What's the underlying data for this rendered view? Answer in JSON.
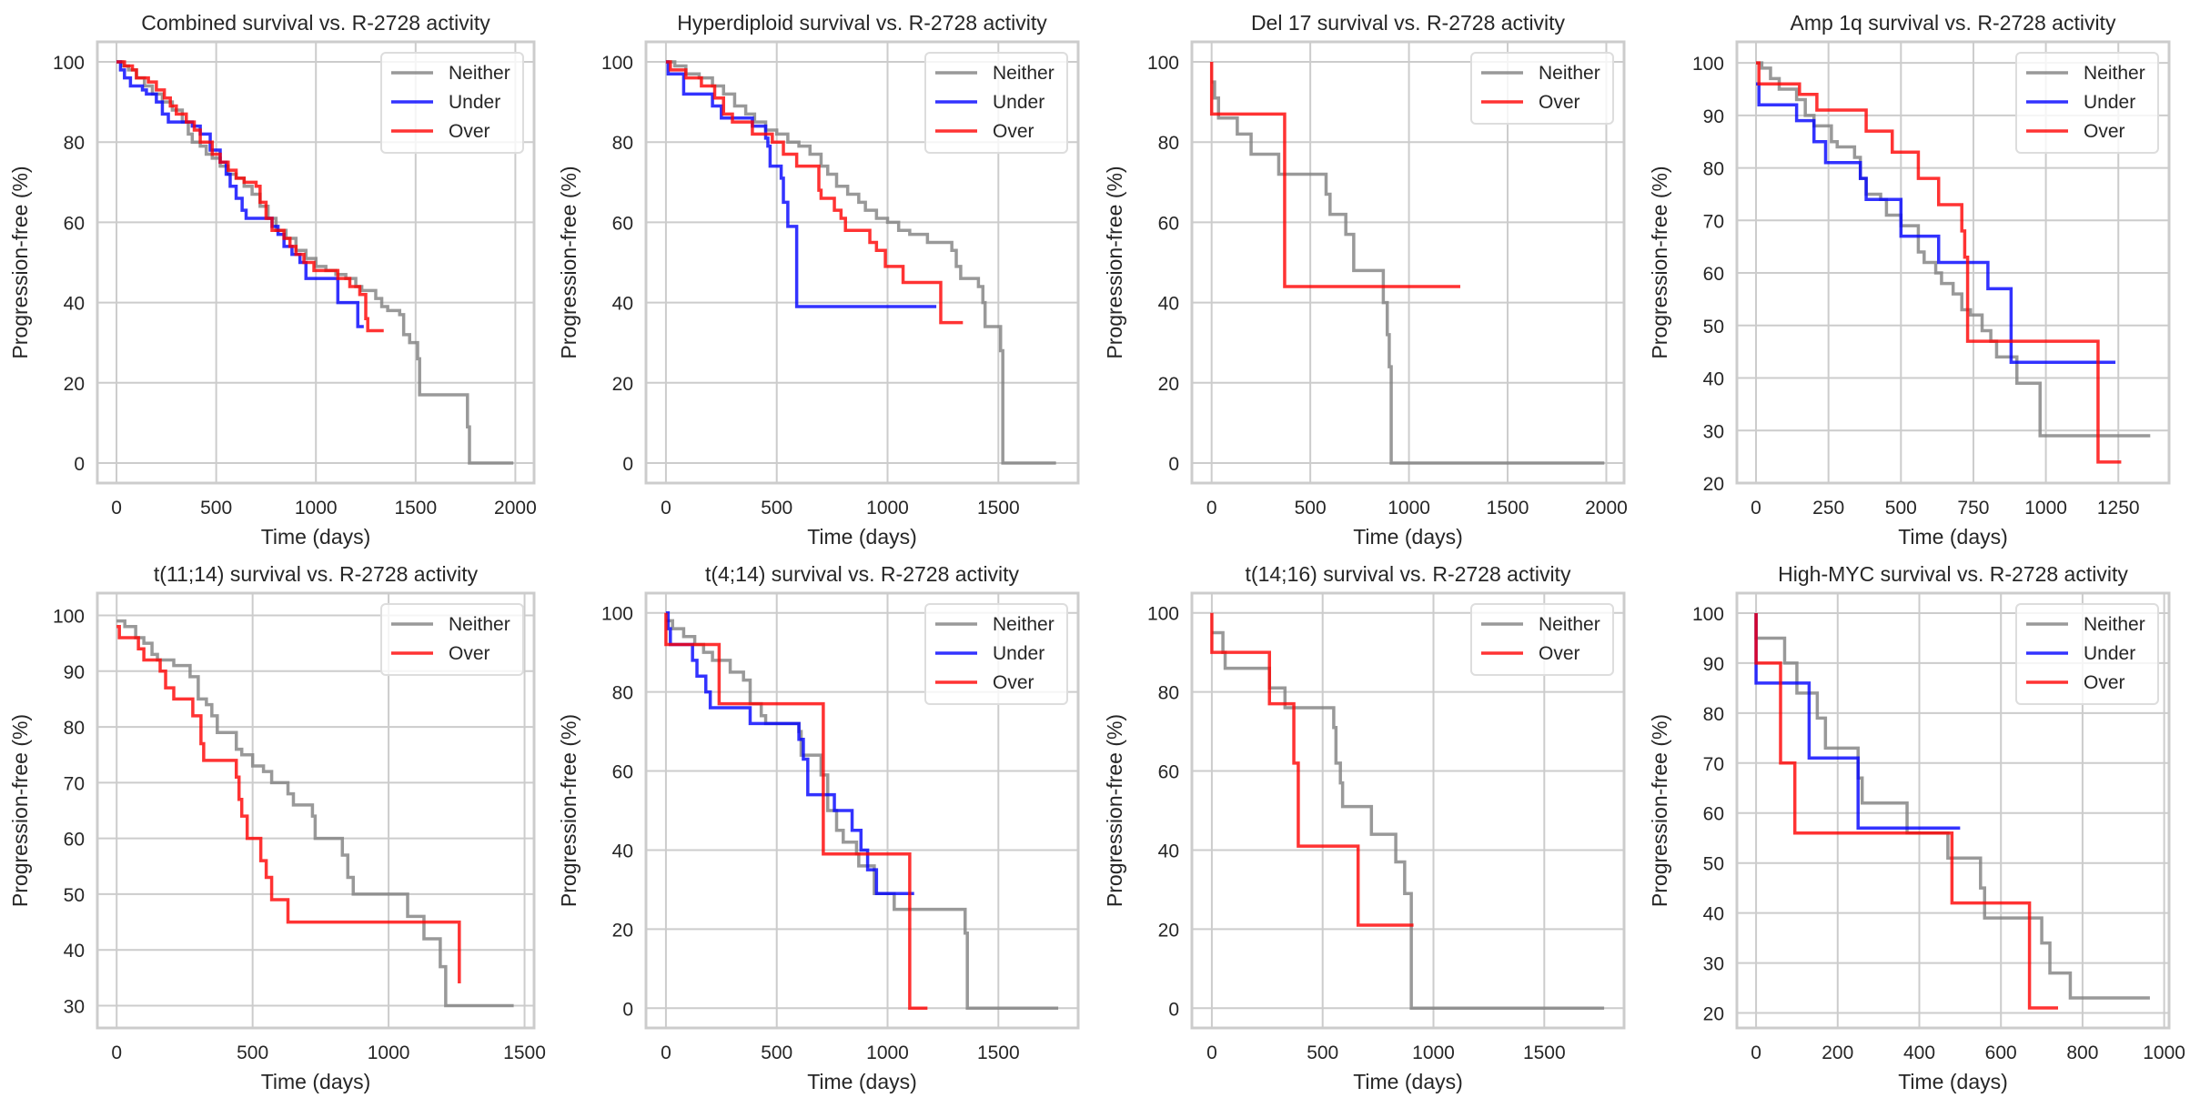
{
  "figure": {
    "series_colors": {
      "Neither": "#808080",
      "Under": "#0000ff",
      "Over": "#ff0000"
    }
  },
  "chart_data": [
    {
      "type": "line",
      "step": true,
      "title": "Combined survival vs. R-2728 activity",
      "xlabel": "Time (days)",
      "ylabel": "Progression-free (%)",
      "xlim": [
        -96,
        2094
      ],
      "ylim": [
        -5,
        105
      ],
      "xticks": [
        0,
        500,
        1000,
        1500,
        2000
      ],
      "yticks": [
        0,
        20,
        40,
        60,
        80,
        100
      ],
      "grid": true,
      "legend": "top-right",
      "series": [
        {
          "name": "Neither",
          "x": [
            0,
            30,
            60,
            100,
            140,
            180,
            230,
            280,
            330,
            360,
            380,
            420,
            450,
            480,
            520,
            560,
            600,
            640,
            680,
            720,
            760,
            800,
            850,
            900,
            950,
            1000,
            1050,
            1100,
            1150,
            1200,
            1230,
            1300,
            1330,
            1360,
            1420,
            1440,
            1470,
            1510,
            1520,
            1760,
            1770,
            1990
          ],
          "y": [
            100,
            99,
            98,
            96,
            94,
            92,
            90,
            88,
            85,
            82,
            80,
            79,
            77,
            76,
            74,
            72,
            71,
            69,
            67,
            64,
            61,
            58,
            56,
            53,
            51,
            49,
            48,
            47,
            46,
            44,
            43,
            41,
            39,
            38,
            37,
            32,
            30,
            26,
            17,
            9,
            0,
            0
          ]
        },
        {
          "name": "Under",
          "x": [
            0,
            20,
            40,
            70,
            130,
            150,
            200,
            230,
            260,
            380,
            420,
            470,
            520,
            550,
            570,
            600,
            630,
            650,
            780,
            810,
            840,
            880,
            920,
            950,
            1110,
            1210,
            1240
          ],
          "y": [
            100,
            98,
            96,
            94,
            93,
            92,
            90,
            87,
            85,
            84,
            82,
            78,
            75,
            72,
            69,
            66,
            63,
            61,
            59,
            57,
            54,
            52,
            50,
            46,
            40,
            34,
            34
          ]
        },
        {
          "name": "Over",
          "x": [
            0,
            40,
            80,
            100,
            160,
            200,
            240,
            270,
            300,
            350,
            390,
            420,
            480,
            520,
            560,
            600,
            640,
            700,
            720,
            750,
            780,
            840,
            870,
            900,
            940,
            990,
            1110,
            1170,
            1220,
            1250,
            1260,
            1340
          ],
          "y": [
            100,
            99,
            98,
            96,
            95,
            93,
            91,
            89,
            87,
            85,
            83,
            80,
            77,
            75,
            73,
            71,
            70,
            69,
            65,
            61,
            58,
            56,
            54,
            52,
            50,
            48,
            46,
            44,
            42,
            36,
            33,
            33
          ]
        }
      ]
    },
    {
      "type": "line",
      "step": true,
      "title": "Hyperdiploid survival vs. R-2728 activity",
      "xlabel": "Time (days)",
      "ylabel": "Progression-free (%)",
      "xlim": [
        -90,
        1860
      ],
      "ylim": [
        -5,
        105
      ],
      "xticks": [
        0,
        500,
        1000,
        1500
      ],
      "yticks": [
        0,
        20,
        40,
        60,
        80,
        100
      ],
      "grid": true,
      "legend": "top-right",
      "series": [
        {
          "name": "Neither",
          "x": [
            0,
            40,
            90,
            150,
            210,
            260,
            310,
            360,
            400,
            450,
            500,
            550,
            600,
            650,
            700,
            730,
            770,
            820,
            870,
            900,
            950,
            1000,
            1050,
            1100,
            1180,
            1290,
            1310,
            1330,
            1410,
            1430,
            1440,
            1510,
            1520,
            1760
          ],
          "y": [
            100,
            99,
            97,
            96,
            94,
            92,
            89,
            87,
            85,
            83,
            82,
            80,
            79,
            77,
            74,
            72,
            69,
            67,
            65,
            63,
            61,
            60,
            58,
            57,
            55,
            53,
            49,
            46,
            44,
            40,
            34,
            28,
            0,
            0
          ]
        },
        {
          "name": "Under",
          "x": [
            0,
            10,
            70,
            80,
            210,
            250,
            390,
            450,
            460,
            470,
            520,
            530,
            550,
            580,
            590,
            1220
          ],
          "y": [
            100,
            97,
            97,
            92,
            89,
            86,
            84,
            81,
            79,
            74,
            71,
            65,
            59,
            59,
            39,
            39
          ]
        },
        {
          "name": "Over",
          "x": [
            0,
            20,
            90,
            160,
            220,
            260,
            300,
            390,
            400,
            480,
            530,
            590,
            690,
            700,
            760,
            790,
            810,
            920,
            950,
            990,
            1070,
            1240,
            1340
          ],
          "y": [
            100,
            98,
            96,
            94,
            91,
            87,
            85,
            82,
            82,
            80,
            77,
            74,
            68,
            66,
            63,
            61,
            58,
            55,
            53,
            49,
            45,
            35,
            35
          ]
        }
      ]
    },
    {
      "type": "line",
      "step": true,
      "title": "Del 17 survival vs. R-2728 activity",
      "xlabel": "Time (days)",
      "ylabel": "Progression-free (%)",
      "xlim": [
        -100,
        2090
      ],
      "ylim": [
        -5,
        105
      ],
      "xticks": [
        0,
        500,
        1000,
        1500,
        2000
      ],
      "yticks": [
        0,
        20,
        40,
        60,
        80,
        100
      ],
      "grid": true,
      "legend": "top-right",
      "series": [
        {
          "name": "Neither",
          "x": [
            0,
            15,
            35,
            130,
            200,
            340,
            580,
            600,
            680,
            720,
            870,
            890,
            900,
            910,
            1990
          ],
          "y": [
            95,
            91,
            86,
            82,
            77,
            72,
            67,
            62,
            57,
            48,
            40,
            32,
            24,
            0,
            0
          ]
        },
        {
          "name": "Over",
          "x": [
            0,
            0,
            370,
            1260
          ],
          "y": [
            100,
            87,
            44,
            44
          ]
        }
      ]
    },
    {
      "type": "line",
      "step": true,
      "title": "Amp 1q survival vs. R-2728 activity",
      "xlabel": "Time (days)",
      "ylabel": "Progression-free (%)",
      "xlim": [
        -66,
        1425
      ],
      "ylim": [
        20,
        104
      ],
      "xticks": [
        0,
        250,
        500,
        750,
        1000,
        1250
      ],
      "yticks": [
        20,
        30,
        40,
        50,
        60,
        70,
        80,
        90,
        100
      ],
      "grid": true,
      "legend": "top-right",
      "series": [
        {
          "name": "Neither",
          "x": [
            0,
            20,
            50,
            80,
            140,
            170,
            200,
            260,
            280,
            340,
            360,
            380,
            430,
            450,
            500,
            560,
            580,
            620,
            640,
            680,
            710,
            740,
            780,
            810,
            830,
            900,
            980,
            1360
          ],
          "y": [
            100,
            99,
            97,
            95,
            93,
            90,
            88,
            85,
            84,
            82,
            78,
            75,
            74,
            71,
            69,
            64,
            62,
            60,
            58,
            56,
            53,
            52,
            49,
            47,
            44,
            39,
            29,
            29
          ]
        },
        {
          "name": "Under",
          "x": [
            0,
            10,
            140,
            200,
            240,
            360,
            380,
            500,
            630,
            800,
            880,
            1240
          ],
          "y": [
            96,
            92,
            89,
            85,
            81,
            78,
            74,
            67,
            62,
            57,
            43,
            43
          ]
        },
        {
          "name": "Over",
          "x": [
            0,
            10,
            150,
            210,
            380,
            470,
            560,
            630,
            710,
            720,
            730,
            1180,
            1260
          ],
          "y": [
            100,
            96,
            94,
            91,
            87,
            83,
            78,
            73,
            68,
            63,
            47,
            24,
            24
          ]
        }
      ]
    },
    {
      "type": "line",
      "step": true,
      "title": "t(11;14) survival vs. R-2728 activity",
      "xlabel": "Time (days)",
      "ylabel": "Progression-free (%)",
      "xlim": [
        -71,
        1535
      ],
      "ylim": [
        26,
        104
      ],
      "xticks": [
        0,
        500,
        1000,
        1500
      ],
      "yticks": [
        30,
        40,
        50,
        60,
        70,
        80,
        90,
        100
      ],
      "grid": true,
      "legend": "top-right",
      "series": [
        {
          "name": "Neither",
          "x": [
            0,
            30,
            70,
            100,
            130,
            150,
            210,
            270,
            300,
            330,
            350,
            370,
            440,
            460,
            500,
            540,
            570,
            630,
            650,
            720,
            730,
            830,
            850,
            870,
            1070,
            1130,
            1190,
            1210,
            1460
          ],
          "y": [
            99,
            98,
            96,
            95,
            93,
            92,
            91,
            89,
            85,
            84,
            82,
            79,
            76,
            75,
            73,
            72,
            70,
            68,
            66,
            64,
            60,
            57,
            53,
            50,
            46,
            42,
            37,
            30,
            30
          ]
        },
        {
          "name": "Over",
          "x": [
            0,
            10,
            80,
            100,
            160,
            180,
            210,
            280,
            310,
            320,
            440,
            450,
            460,
            480,
            530,
            550,
            570,
            630,
            1260
          ],
          "y": [
            98,
            96,
            94,
            92,
            90,
            87,
            85,
            82,
            77,
            74,
            71,
            67,
            64,
            60,
            56,
            53,
            49,
            45,
            34
          ]
        }
      ]
    },
    {
      "type": "line",
      "step": true,
      "title": "t(4;14) survival vs. R-2728 activity",
      "xlabel": "Time (days)",
      "ylabel": "Progression-free (%)",
      "xlim": [
        -90,
        1860
      ],
      "ylim": [
        -5,
        105
      ],
      "xticks": [
        0,
        500,
        1000,
        1500
      ],
      "yticks": [
        0,
        20,
        40,
        60,
        80,
        100
      ],
      "grid": true,
      "legend": "top-right",
      "series": [
        {
          "name": "Neither",
          "x": [
            0,
            30,
            80,
            130,
            170,
            210,
            290,
            350,
            380,
            430,
            450,
            600,
            610,
            700,
            730,
            770,
            800,
            860,
            870,
            940,
            1030,
            1350,
            1360,
            1770
          ],
          "y": [
            98,
            96,
            94,
            92,
            90,
            88,
            85,
            83,
            77,
            74,
            72,
            70,
            64,
            59,
            50,
            45,
            42,
            39,
            36,
            29,
            25,
            19,
            0,
            0
          ]
        },
        {
          "name": "Under",
          "x": [
            0,
            10,
            20,
            120,
            140,
            180,
            200,
            380,
            600,
            620,
            640,
            760,
            840,
            880,
            910,
            950,
            1120
          ],
          "y": [
            100,
            96,
            92,
            88,
            84,
            80,
            76,
            72,
            68,
            63,
            54,
            50,
            45,
            40,
            35,
            29,
            29
          ]
        },
        {
          "name": "Over",
          "x": [
            0,
            0,
            240,
            710,
            1100,
            1180
          ],
          "y": [
            100,
            92,
            77,
            39,
            0,
            0
          ]
        }
      ]
    },
    {
      "type": "line",
      "step": true,
      "title": "t(14;16) survival vs. R-2728 activity",
      "xlabel": "Time (days)",
      "ylabel": "Progression-free (%)",
      "xlim": [
        -90,
        1860
      ],
      "ylim": [
        -5,
        105
      ],
      "xticks": [
        0,
        500,
        1000,
        1500
      ],
      "yticks": [
        0,
        20,
        40,
        60,
        80,
        100
      ],
      "grid": true,
      "legend": "top-right",
      "series": [
        {
          "name": "Neither",
          "x": [
            0,
            50,
            60,
            260,
            330,
            550,
            560,
            580,
            590,
            720,
            830,
            870,
            900,
            1770
          ],
          "y": [
            95,
            90,
            86,
            81,
            76,
            71,
            62,
            57,
            51,
            44,
            37,
            29,
            0,
            0
          ]
        },
        {
          "name": "Over",
          "x": [
            0,
            0,
            260,
            370,
            390,
            660,
            910
          ],
          "y": [
            100,
            90,
            77,
            62,
            41,
            21,
            21
          ]
        }
      ]
    },
    {
      "type": "line",
      "step": true,
      "title": "High-MYC survival vs. R-2728 activity",
      "xlabel": "Time (days)",
      "ylabel": "Progression-free (%)",
      "xlim": [
        -47,
        1012
      ],
      "ylim": [
        17,
        104
      ],
      "xticks": [
        0,
        200,
        400,
        600,
        800,
        1000
      ],
      "yticks": [
        20,
        30,
        40,
        50,
        60,
        70,
        80,
        90,
        100
      ],
      "grid": true,
      "legend": "top-right",
      "series": [
        {
          "name": "Neither",
          "x": [
            0,
            0,
            70,
            100,
            150,
            170,
            250,
            260,
            370,
            470,
            550,
            560,
            700,
            720,
            770,
            965
          ],
          "y": [
            100,
            95,
            90,
            84,
            79,
            73,
            67,
            62,
            56,
            51,
            45,
            39,
            34,
            28,
            23,
            23
          ]
        },
        {
          "name": "Under",
          "x": [
            0,
            0,
            130,
            250,
            500
          ],
          "y": [
            100,
            86,
            71,
            57,
            57
          ]
        },
        {
          "name": "Over",
          "x": [
            0,
            0,
            60,
            95,
            480,
            670,
            740
          ],
          "y": [
            100,
            90,
            70,
            56,
            42,
            21,
            21
          ]
        }
      ]
    }
  ]
}
